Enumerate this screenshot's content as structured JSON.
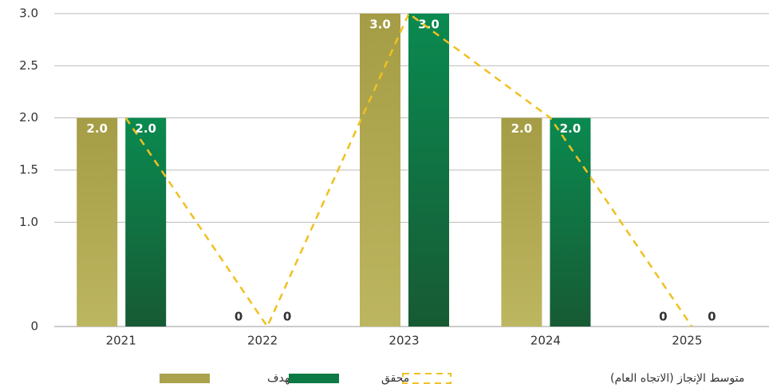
{
  "chart_data": {
    "type": "bar",
    "categories": [
      "2021",
      "2022",
      "2023",
      "2024",
      "2025"
    ],
    "series": [
      {
        "name": "مستهدف",
        "type": "bar",
        "color": "#aaa24c",
        "values": [
          2,
          0,
          3,
          2,
          0
        ],
        "value_labels": [
          "2.0",
          "0",
          "3.0",
          "2.0",
          "0"
        ]
      },
      {
        "name": "محقق",
        "type": "bar",
        "color": "#0b7f48",
        "values": [
          2,
          0,
          3,
          2,
          0
        ],
        "value_labels": [
          "2.0",
          "0",
          "3.0",
          "2.0",
          "0"
        ]
      },
      {
        "name": "متوسط الإنجاز (الاتجاه العام)",
        "type": "line",
        "color": "#f0c020",
        "dashed": true,
        "values": [
          2,
          0,
          3,
          2,
          0
        ]
      }
    ],
    "ylim": [
      0,
      3
    ],
    "yticks": [
      0,
      {
        "value": 1,
        "label": "1.0"
      },
      1.5,
      {
        "value": 2,
        "label": "2.0"
      },
      2.5,
      {
        "value": 3,
        "label": "3.0"
      }
    ],
    "grid": true,
    "legend": "bottom"
  }
}
